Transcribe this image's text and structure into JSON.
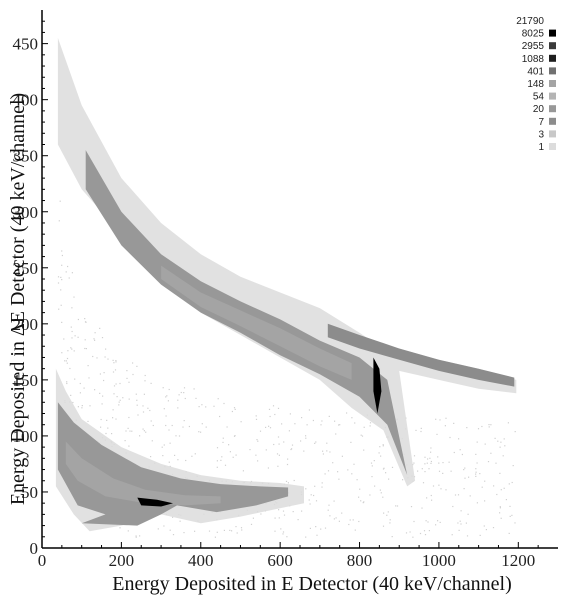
{
  "chart_data": {
    "type": "heatmap",
    "title": "",
    "xlabel": "Energy Deposited in E Detector (40 keV/channel)",
    "ylabel": "Energy Deposited in ΔE Detector (40 keV/channel)",
    "xlim": [
      0,
      1300
    ],
    "ylim": [
      0,
      480
    ],
    "x_ticks": [
      0,
      200,
      400,
      600,
      800,
      1000,
      1200
    ],
    "y_ticks": [
      0,
      50,
      100,
      150,
      200,
      250,
      300,
      350,
      400,
      450
    ],
    "legend": {
      "placement": "top-right",
      "levels": [
        "21790",
        "8025",
        "2955",
        "1088",
        "401",
        "148",
        "54",
        "20",
        "7",
        "3",
        "1"
      ],
      "colors": [
        "#ffffff",
        "#000000",
        "#3a3a3a",
        "#1e1e1e",
        "#707070",
        "#a4a4a4",
        "#b4b4b4",
        "#989898",
        "#8c8c8c",
        "#c8c8c8",
        "#dcdcdc"
      ]
    },
    "bands": [
      {
        "name": "upper band",
        "outer_upper": [
          [
            40,
            455
          ],
          [
            100,
            395
          ],
          [
            200,
            330
          ],
          [
            300,
            290
          ],
          [
            400,
            262
          ],
          [
            500,
            242
          ],
          [
            600,
            228
          ],
          [
            700,
            214
          ],
          [
            800,
            192
          ],
          [
            860,
            178
          ],
          [
            900,
            178
          ],
          [
            1000,
            168
          ],
          [
            1100,
            160
          ],
          [
            1195,
            150
          ]
        ],
        "outer_lower": [
          [
            1195,
            138
          ],
          [
            1100,
            142
          ],
          [
            1000,
            150
          ],
          [
            900,
            158
          ],
          [
            940,
            60
          ],
          [
            920,
            55
          ],
          [
            860,
            105
          ],
          [
            780,
            125
          ],
          [
            700,
            150
          ],
          [
            600,
            170
          ],
          [
            500,
            190
          ],
          [
            400,
            210
          ],
          [
            300,
            240
          ],
          [
            200,
            280
          ],
          [
            100,
            320
          ],
          [
            40,
            360
          ]
        ],
        "core_upper": [
          [
            110,
            355
          ],
          [
            200,
            300
          ],
          [
            300,
            262
          ],
          [
            400,
            238
          ],
          [
            500,
            220
          ],
          [
            600,
            204
          ],
          [
            700,
            185
          ],
          [
            800,
            170
          ],
          [
            870,
            150
          ]
        ],
        "core_lower": [
          [
            920,
            65
          ],
          [
            870,
            110
          ],
          [
            800,
            135
          ],
          [
            700,
            155
          ],
          [
            600,
            172
          ],
          [
            500,
            192
          ],
          [
            400,
            210
          ],
          [
            300,
            235
          ],
          [
            200,
            270
          ],
          [
            110,
            320
          ]
        ],
        "inner_upper": [
          [
            300,
            252
          ],
          [
            400,
            228
          ],
          [
            500,
            212
          ],
          [
            600,
            196
          ],
          [
            700,
            178
          ],
          [
            780,
            165
          ]
        ],
        "inner_lower": [
          [
            780,
            150
          ],
          [
            700,
            162
          ],
          [
            600,
            180
          ],
          [
            500,
            198
          ],
          [
            400,
            215
          ],
          [
            300,
            240
          ]
        ],
        "tail_upper": [
          [
            720,
            200
          ],
          [
            800,
            190
          ],
          [
            900,
            178
          ],
          [
            1000,
            168
          ],
          [
            1100,
            160
          ],
          [
            1190,
            152
          ]
        ],
        "tail_lower": [
          [
            1190,
            144
          ],
          [
            1100,
            150
          ],
          [
            1000,
            158
          ],
          [
            900,
            168
          ],
          [
            800,
            178
          ],
          [
            720,
            188
          ]
        ],
        "peak": [
          [
            835,
            170
          ],
          [
            850,
            160
          ],
          [
            855,
            140
          ],
          [
            845,
            120
          ],
          [
            835,
            140
          ]
        ]
      },
      {
        "name": "lower band",
        "outer_upper": [
          [
            35,
            160
          ],
          [
            60,
            140
          ],
          [
            100,
            115
          ],
          [
            200,
            90
          ],
          [
            300,
            75
          ],
          [
            400,
            65
          ],
          [
            500,
            60
          ],
          [
            600,
            58
          ],
          [
            660,
            55
          ]
        ],
        "outer_lower": [
          [
            660,
            40
          ],
          [
            500,
            28
          ],
          [
            400,
            22
          ],
          [
            300,
            30
          ],
          [
            200,
            20
          ],
          [
            120,
            15
          ],
          [
            80,
            30
          ],
          [
            35,
            55
          ]
        ],
        "core_upper": [
          [
            40,
            130
          ],
          [
            80,
            112
          ],
          [
            150,
            92
          ],
          [
            250,
            72
          ],
          [
            350,
            62
          ],
          [
            450,
            57
          ],
          [
            550,
            55
          ],
          [
            620,
            54
          ]
        ],
        "core_lower": [
          [
            620,
            46
          ],
          [
            540,
            38
          ],
          [
            440,
            32
          ],
          [
            340,
            38
          ],
          [
            300,
            30
          ],
          [
            240,
            20
          ],
          [
            100,
            22
          ],
          [
            160,
            30
          ],
          [
            90,
            38
          ],
          [
            40,
            70
          ]
        ],
        "inner_upper": [
          [
            60,
            95
          ],
          [
            100,
            80
          ],
          [
            180,
            62
          ],
          [
            260,
            52
          ],
          [
            360,
            47
          ],
          [
            450,
            46
          ]
        ],
        "inner_lower": [
          [
            450,
            40
          ],
          [
            360,
            38
          ],
          [
            260,
            40
          ],
          [
            160,
            46
          ],
          [
            90,
            60
          ],
          [
            60,
            75
          ]
        ],
        "peak": [
          [
            240,
            45
          ],
          [
            290,
            43
          ],
          [
            330,
            40
          ],
          [
            300,
            37
          ],
          [
            250,
            38
          ]
        ]
      }
    ]
  }
}
